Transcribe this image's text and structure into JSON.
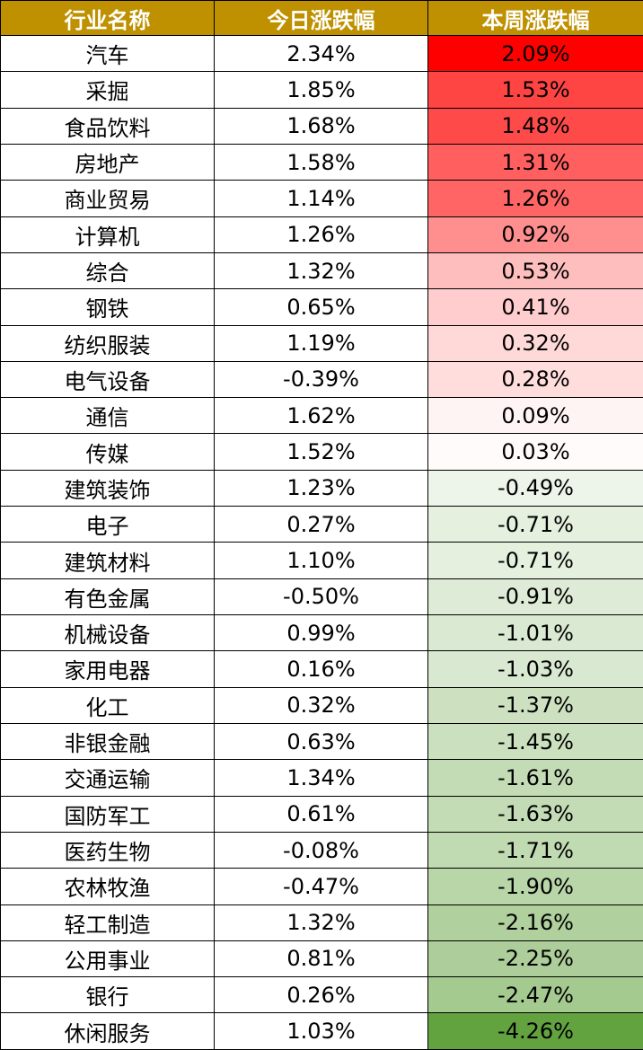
{
  "table": {
    "header": [
      "行业名称",
      "今日涨跌幅",
      "本周涨跌幅"
    ],
    "header_color": "#bf9000",
    "heatmap": {
      "high": "#ff0000",
      "zero": "#ffffff",
      "low": "#63a33f"
    },
    "rows": [
      [
        "汽车",
        "2.34%",
        "2.09%"
      ],
      [
        "采掘",
        "1.85%",
        "1.53%"
      ],
      [
        "食品饮料",
        "1.68%",
        "1.48%"
      ],
      [
        "房地产",
        "1.58%",
        "1.31%"
      ],
      [
        "商业贸易",
        "1.14%",
        "1.26%"
      ],
      [
        "计算机",
        "1.26%",
        "0.92%"
      ],
      [
        "综合",
        "1.32%",
        "0.53%"
      ],
      [
        "钢铁",
        "0.65%",
        "0.41%"
      ],
      [
        "纺织服装",
        "1.19%",
        "0.32%"
      ],
      [
        "电气设备",
        "-0.39%",
        "0.28%"
      ],
      [
        "通信",
        "1.62%",
        "0.09%"
      ],
      [
        "传媒",
        "1.52%",
        "0.03%"
      ],
      [
        "建筑装饰",
        "1.23%",
        "-0.49%"
      ],
      [
        "电子",
        "0.27%",
        "-0.71%"
      ],
      [
        "建筑材料",
        "1.10%",
        "-0.71%"
      ],
      [
        "有色金属",
        "-0.50%",
        "-0.91%"
      ],
      [
        "机械设备",
        "0.99%",
        "-1.01%"
      ],
      [
        "家用电器",
        "0.16%",
        "-1.03%"
      ],
      [
        "化工",
        "0.32%",
        "-1.37%"
      ],
      [
        "非银金融",
        "0.63%",
        "-1.45%"
      ],
      [
        "交通运输",
        "1.34%",
        "-1.61%"
      ],
      [
        "国防军工",
        "0.61%",
        "-1.63%"
      ],
      [
        "医药生物",
        "-0.08%",
        "-1.71%"
      ],
      [
        "农林牧渔",
        "-0.47%",
        "-1.90%"
      ],
      [
        "轻工制造",
        "1.32%",
        "-2.16%"
      ],
      [
        "公用事业",
        "0.81%",
        "-2.25%"
      ],
      [
        "银行",
        "0.26%",
        "-2.47%"
      ],
      [
        "休闲服务",
        "1.03%",
        "-4.26%"
      ]
    ]
  }
}
